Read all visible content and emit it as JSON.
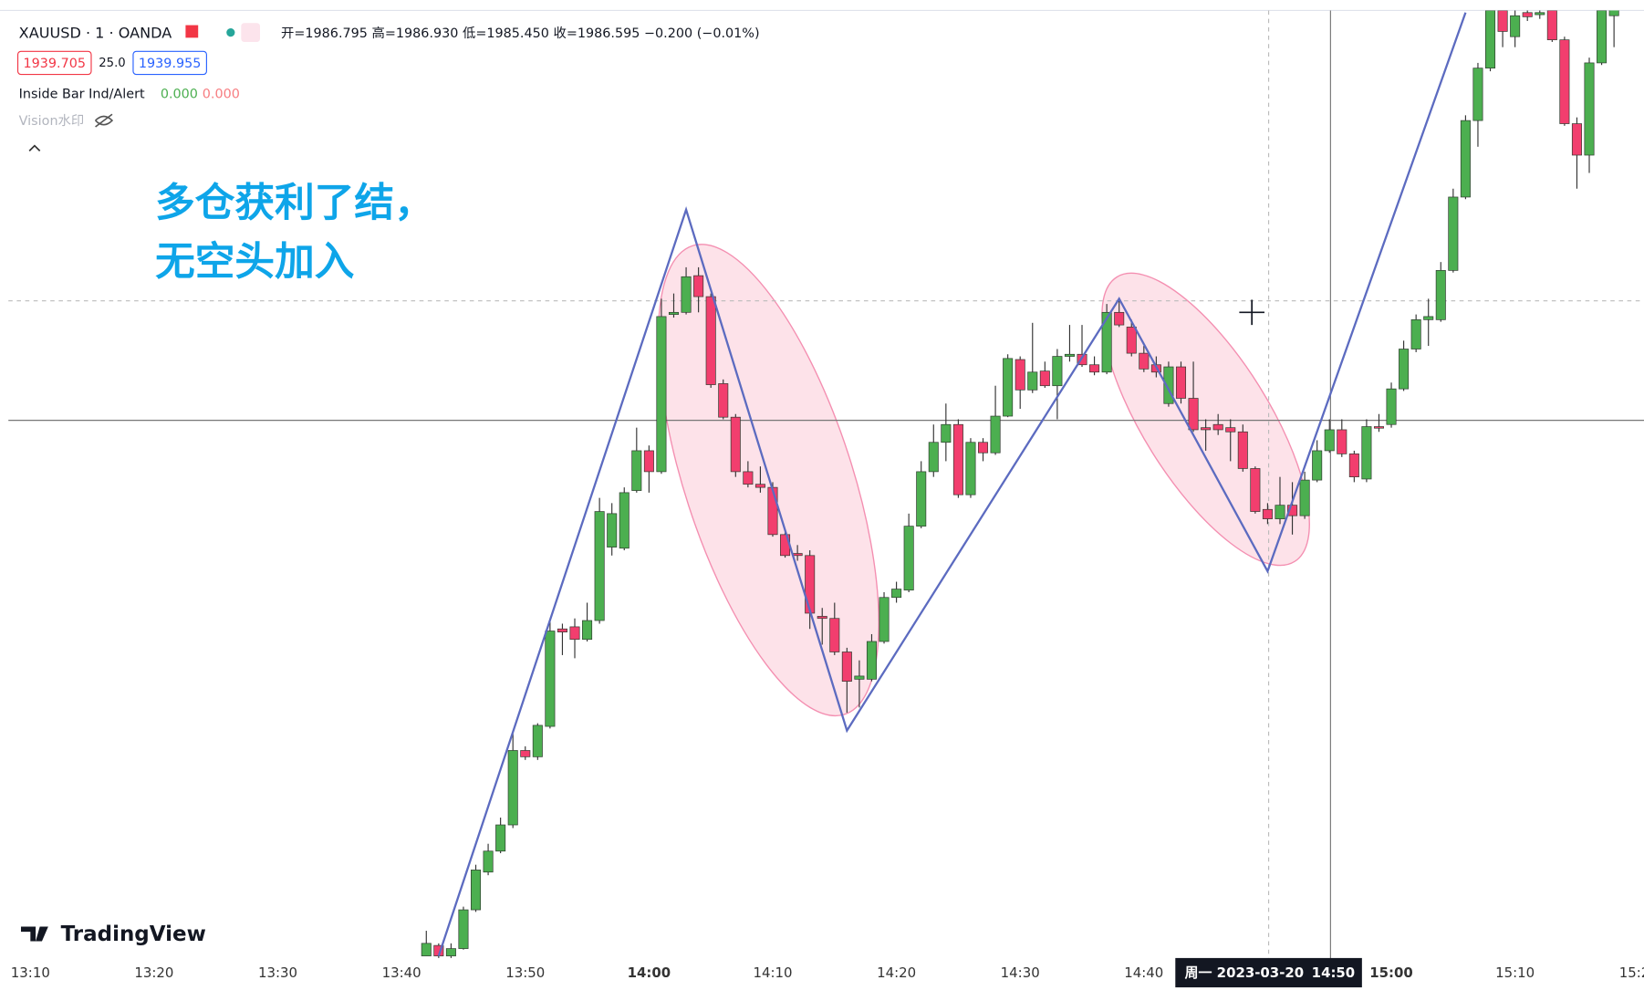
{
  "header": {
    "symbol": "XAUUSD · 1 · OANDA",
    "ohlc": "开=1986.795 高=1986.930 低=1985.450 收=1986.595 −0.200 (−0.01%)",
    "bid": "1939.705",
    "spread": "25.0",
    "ask": "1939.955",
    "indicator": "Inside Bar Ind/Alert",
    "indicator_v1": "0.000",
    "indicator_v2": "0.000",
    "watermark": "Vision水印",
    "logo": "TradingView"
  },
  "annotation": [
    "多仓获利了结，",
    "无空头加入"
  ],
  "crosshair": {
    "date": "周一 2023-03-20",
    "time": "14:50"
  },
  "chart_data": {
    "type": "candlestick",
    "up_color": "#4caf50",
    "down_color": "#f23e6e",
    "ylim": [
      1964.4,
      2010
    ],
    "xticks": [
      "13:10",
      "13:20",
      "13:30",
      "13:40",
      "13:50",
      "14:00",
      "14:10",
      "14:20",
      "14:30",
      "14:40",
      "15:00",
      "15:10",
      "15:20"
    ],
    "x": [
      "13:42",
      "13:43",
      "13:44",
      "13:45",
      "13:46",
      "13:47",
      "13:48",
      "13:49",
      "13:50",
      "13:51",
      "13:52",
      "13:53",
      "13:54",
      "13:55",
      "13:56",
      "13:57",
      "13:58",
      "13:59",
      "14:00",
      "14:01",
      "14:02",
      "14:03",
      "14:04",
      "14:05",
      "14:06",
      "14:07",
      "14:08",
      "14:09",
      "14:10",
      "14:11",
      "14:12",
      "14:13",
      "14:14",
      "14:15",
      "14:16",
      "14:17",
      "14:18",
      "14:19",
      "14:20",
      "14:21",
      "14:22",
      "14:23",
      "14:24",
      "14:25",
      "14:26",
      "14:27",
      "14:28",
      "14:29",
      "14:30",
      "14:31",
      "14:32",
      "14:33",
      "14:34",
      "14:35",
      "14:36",
      "14:37",
      "14:38",
      "14:39",
      "14:40",
      "14:41",
      "14:42",
      "14:43",
      "14:44",
      "14:45",
      "14:46",
      "14:47",
      "14:48",
      "14:49",
      "14:50",
      "14:51",
      "14:52",
      "14:53",
      "14:54",
      "14:55",
      "14:56",
      "14:57",
      "14:58",
      "14:59",
      "15:00",
      "15:01",
      "15:02",
      "15:03",
      "15:04",
      "15:05",
      "15:06",
      "15:07",
      "15:08",
      "15:09",
      "15:10",
      "15:11",
      "15:12",
      "15:13",
      "15:14",
      "15:15",
      "15:16",
      "15:17",
      "15:18"
    ],
    "candles": [
      [
        1964.4,
        1965.6,
        1964.4,
        1965.0
      ],
      [
        1964.9,
        1965.0,
        1964.3,
        1964.4
      ],
      [
        1964.4,
        1965.0,
        1964.3,
        1964.75
      ],
      [
        1964.75,
        1966.75,
        1964.7,
        1966.6
      ],
      [
        1966.6,
        1968.75,
        1966.5,
        1968.5
      ],
      [
        1968.4,
        1969.75,
        1968.25,
        1969.4
      ],
      [
        1969.4,
        1971.0,
        1969.3,
        1970.65
      ],
      [
        1970.65,
        1975.0,
        1970.5,
        1974.2
      ],
      [
        1974.2,
        1974.4,
        1973.75,
        1973.9
      ],
      [
        1973.9,
        1975.5,
        1973.75,
        1975.4
      ],
      [
        1975.35,
        1980.4,
        1975.25,
        1979.9
      ],
      [
        1980.0,
        1980.25,
        1978.75,
        1979.85
      ],
      [
        1980.1,
        1980.5,
        1978.6,
        1979.5
      ],
      [
        1979.5,
        1981.25,
        1979.4,
        1980.4
      ],
      [
        1980.4,
        1986.25,
        1980.25,
        1985.6
      ],
      [
        1983.9,
        1986.0,
        1983.5,
        1985.5
      ],
      [
        1983.85,
        1986.75,
        1983.75,
        1986.5
      ],
      [
        1986.6,
        1989.6,
        1986.5,
        1988.5
      ],
      [
        1988.5,
        1988.75,
        1986.5,
        1987.5
      ],
      [
        1987.5,
        1995.75,
        1987.4,
        1994.9
      ],
      [
        1995.0,
        1996.0,
        1994.85,
        1995.1
      ],
      [
        1995.1,
        1997.25,
        1995.0,
        1996.8
      ],
      [
        1996.85,
        1997.25,
        1995.1,
        1995.85
      ],
      [
        1995.85,
        1996.0,
        1991.5,
        1991.65
      ],
      [
        1991.7,
        1991.9,
        1990.0,
        1990.1
      ],
      [
        1990.1,
        1990.25,
        1987.25,
        1987.5
      ],
      [
        1987.5,
        1988.0,
        1986.75,
        1986.9
      ],
      [
        1986.9,
        1987.75,
        1986.5,
        1986.75
      ],
      [
        1986.75,
        1987.0,
        1984.4,
        1984.5
      ],
      [
        1984.5,
        1984.75,
        1983.4,
        1983.5
      ],
      [
        1983.6,
        1984.0,
        1983.25,
        1983.5
      ],
      [
        1983.5,
        1983.75,
        1980.0,
        1980.75
      ],
      [
        1980.6,
        1981.0,
        1979.25,
        1980.5
      ],
      [
        1980.5,
        1981.25,
        1978.75,
        1978.9
      ],
      [
        1978.9,
        1979.1,
        1976.0,
        1977.5
      ],
      [
        1977.6,
        1978.5,
        1976.25,
        1977.75
      ],
      [
        1977.6,
        1979.75,
        1977.5,
        1979.4
      ],
      [
        1979.4,
        1981.75,
        1979.3,
        1981.5
      ],
      [
        1981.5,
        1982.25,
        1981.25,
        1981.9
      ],
      [
        1981.85,
        1985.5,
        1981.75,
        1984.9
      ],
      [
        1984.9,
        1988.0,
        1984.8,
        1987.5
      ],
      [
        1987.5,
        1989.75,
        1987.25,
        1988.9
      ],
      [
        1988.9,
        1990.75,
        1988.0,
        1989.75
      ],
      [
        1989.75,
        1990.0,
        1986.25,
        1986.4
      ],
      [
        1986.4,
        1989.1,
        1986.25,
        1988.9
      ],
      [
        1988.9,
        1989.1,
        1988.0,
        1988.4
      ],
      [
        1988.4,
        1991.6,
        1988.3,
        1990.15
      ],
      [
        1990.15,
        1993.1,
        1990.1,
        1992.9
      ],
      [
        1992.85,
        1993.0,
        1990.5,
        1991.4
      ],
      [
        1991.4,
        1994.6,
        1991.25,
        1992.25
      ],
      [
        1992.3,
        1992.75,
        1991.5,
        1991.6
      ],
      [
        1991.6,
        1993.35,
        1990.0,
        1993.0
      ],
      [
        1993.0,
        1994.5,
        1992.75,
        1993.1
      ],
      [
        1993.1,
        1994.5,
        1992.5,
        1992.6
      ],
      [
        1992.6,
        1993.0,
        1992.1,
        1992.25
      ],
      [
        1992.25,
        1995.5,
        1992.15,
        1995.1
      ],
      [
        1995.1,
        1995.75,
        1994.4,
        1994.5
      ],
      [
        1994.4,
        1994.75,
        1993.0,
        1993.15
      ],
      [
        1993.15,
        1993.5,
        1992.25,
        1992.4
      ],
      [
        1992.6,
        1993.0,
        1992.0,
        1992.25
      ],
      [
        1990.75,
        1992.75,
        1990.6,
        1992.5
      ],
      [
        1992.5,
        1992.75,
        1990.75,
        1991.0
      ],
      [
        1991.0,
        1992.75,
        1989.4,
        1989.5
      ],
      [
        1989.6,
        1990.0,
        1988.5,
        1989.5
      ],
      [
        1989.75,
        1990.25,
        1989.25,
        1989.5
      ],
      [
        1989.6,
        1990.0,
        1988.0,
        1989.4
      ],
      [
        1989.4,
        1989.75,
        1987.5,
        1987.65
      ],
      [
        1987.65,
        1987.75,
        1985.5,
        1985.6
      ],
      [
        1985.7,
        1986.0,
        1985.0,
        1985.25
      ],
      [
        1985.25,
        1987.25,
        1985.0,
        1985.9
      ],
      [
        1985.9,
        1987.0,
        1984.5,
        1985.4
      ],
      [
        1985.4,
        1987.5,
        1985.25,
        1987.1
      ],
      [
        1987.1,
        1989.0,
        1987.0,
        1988.5
      ],
      [
        1988.5,
        1990.0,
        1988.4,
        1989.5
      ],
      [
        1989.5,
        1990.0,
        1988.2,
        1988.35
      ],
      [
        1988.35,
        1988.5,
        1987.0,
        1987.25
      ],
      [
        1987.15,
        1990.0,
        1987.0,
        1989.65
      ],
      [
        1989.65,
        1990.25,
        1989.4,
        1989.6
      ],
      [
        1989.75,
        1991.75,
        1989.6,
        1991.45
      ],
      [
        1991.45,
        1993.75,
        1991.35,
        1993.35
      ],
      [
        1993.35,
        1995.0,
        1993.2,
        1994.75
      ],
      [
        1994.75,
        1995.75,
        1993.5,
        1994.9
      ],
      [
        1994.75,
        1997.5,
        1994.65,
        1997.1
      ],
      [
        1997.1,
        2001.0,
        1997.0,
        2000.6
      ],
      [
        2000.6,
        2004.5,
        2000.5,
        2004.25
      ],
      [
        2004.25,
        2007.0,
        2003.0,
        2006.75
      ],
      [
        2006.75,
        2010,
        2006.6,
        2009.5
      ],
      [
        2009.5,
        2010,
        2007.75,
        2008.5
      ],
      [
        2008.25,
        2010,
        2007.75,
        2009.25
      ],
      [
        2009.4,
        2010,
        2009.0,
        2009.2
      ],
      [
        2009.3,
        2010,
        2009.1,
        2009.4
      ],
      [
        2009.5,
        2010,
        2008.0,
        2008.1
      ],
      [
        2008.1,
        2008.25,
        2004.0,
        2004.1
      ],
      [
        2004.1,
        2004.4,
        2001.0,
        2002.6
      ],
      [
        2002.6,
        2007.25,
        2001.75,
        2007.0
      ],
      [
        2007.0,
        2010,
        2006.9,
        2009.5
      ],
      [
        2009.25,
        2010,
        2007.75,
        2009.75
      ]
    ],
    "zigzag": {
      "color": "#5c6bc0",
      "x": [
        "13:43",
        "14:03",
        "14:16",
        "14:38",
        "14:50",
        "15:06"
      ],
      "values": [
        1964.4,
        2000.0,
        1975.15,
        1995.75,
        1982.75,
        2009.4
      ]
    }
  }
}
